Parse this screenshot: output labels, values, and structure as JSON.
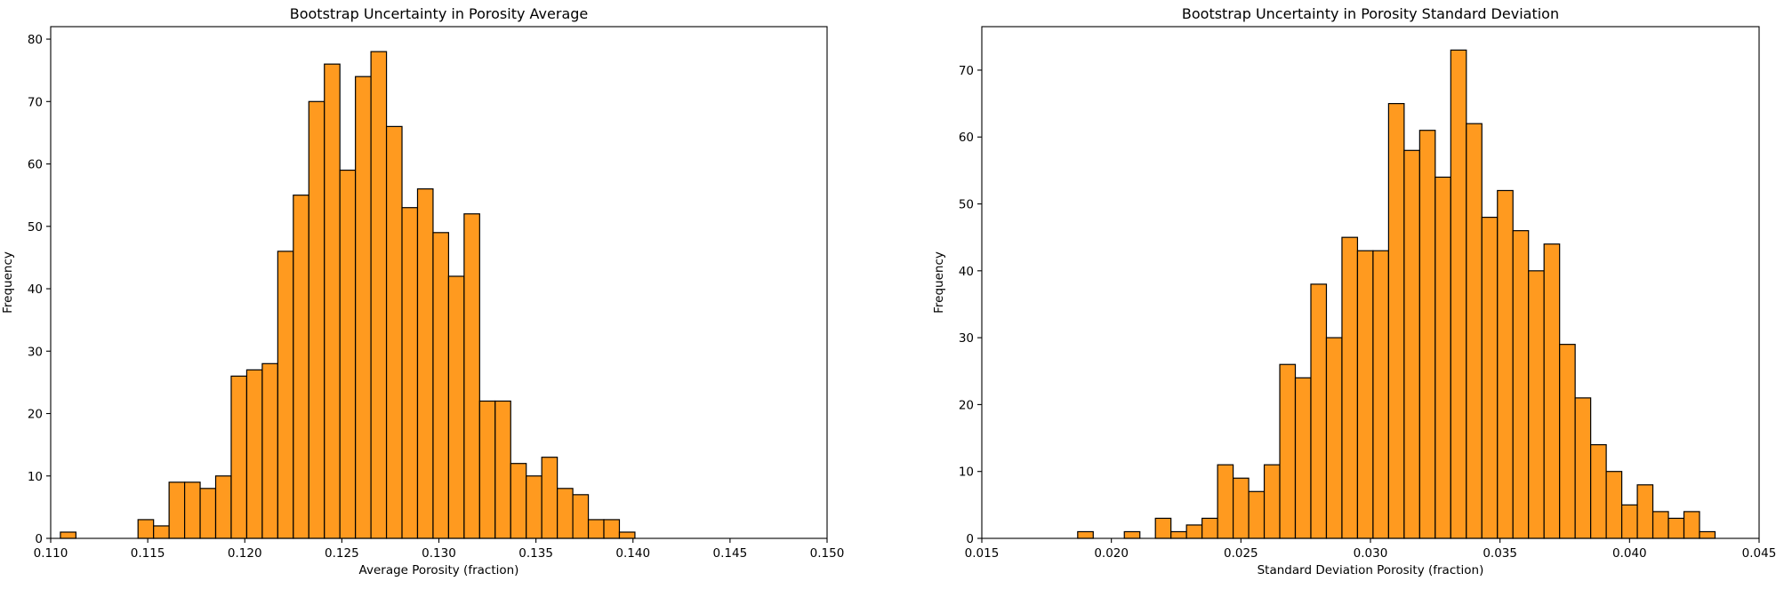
{
  "colors": {
    "bar_fill": "#ff9a1f",
    "bar_edge": "#000000",
    "axis": "#000000",
    "background": "#ffffff"
  },
  "chart_data": [
    {
      "type": "bar",
      "subtype": "histogram",
      "title": "Bootstrap Uncertainty in Porosity Average",
      "xlabel": "Average Porosity (fraction)",
      "ylabel": "Frequency",
      "xlim": [
        0.11,
        0.15
      ],
      "ylim": [
        0,
        82
      ],
      "grid": false,
      "legend": "none",
      "xticks": [
        "0.110",
        "0.115",
        "0.120",
        "0.125",
        "0.130",
        "0.135",
        "0.140",
        "0.145",
        "0.150"
      ],
      "yticks": [
        "0",
        "10",
        "20",
        "30",
        "40",
        "50",
        "60",
        "70",
        "80"
      ],
      "bin_edges": [
        0.1105,
        0.1113,
        0.1121,
        0.1129,
        0.1137,
        0.1145,
        0.1153,
        0.1161,
        0.1169,
        0.1177,
        0.1185,
        0.1193,
        0.1201,
        0.1209,
        0.1217,
        0.1225,
        0.1233,
        0.1241,
        0.1249,
        0.1257,
        0.1265,
        0.1273,
        0.1281,
        0.1289,
        0.1297,
        0.1305,
        0.1313,
        0.1321,
        0.1329,
        0.1337,
        0.1345,
        0.1353,
        0.1361,
        0.1369,
        0.1377,
        0.1385,
        0.1393,
        0.1401
      ],
      "values": [
        1,
        0,
        0,
        0,
        0,
        3,
        2,
        9,
        9,
        8,
        10,
        26,
        27,
        28,
        46,
        55,
        70,
        76,
        59,
        74,
        78,
        66,
        53,
        56,
        49,
        42,
        52,
        22,
        22,
        12,
        10,
        13,
        8,
        7,
        3,
        3,
        1
      ]
    },
    {
      "type": "bar",
      "subtype": "histogram",
      "title": "Bootstrap Uncertainty in Porosity Standard Deviation",
      "xlabel": "Standard Deviation Porosity (fraction)",
      "ylabel": "Frequency",
      "xlim": [
        0.015,
        0.045
      ],
      "ylim": [
        0,
        76.5
      ],
      "grid": false,
      "legend": "none",
      "xticks": [
        "0.015",
        "0.020",
        "0.025",
        "0.030",
        "0.035",
        "0.040",
        "0.045"
      ],
      "yticks": [
        "0",
        "10",
        "20",
        "30",
        "40",
        "50",
        "60",
        "70"
      ],
      "bin_edges": [
        0.0187,
        0.0193,
        0.0199,
        0.0205,
        0.0211,
        0.0217,
        0.0223,
        0.0229,
        0.0235,
        0.0241,
        0.0247,
        0.0253,
        0.0259,
        0.0265,
        0.0271,
        0.0277,
        0.0283,
        0.0289,
        0.0295,
        0.0301,
        0.0307,
        0.0313,
        0.0319,
        0.0325,
        0.0331,
        0.0337,
        0.0343,
        0.0349,
        0.0355,
        0.0361,
        0.0367,
        0.0373,
        0.0379,
        0.0385,
        0.0391,
        0.0397,
        0.0403,
        0.0409,
        0.0415,
        0.0421,
        0.0427,
        0.0433,
        0.0439
      ],
      "values": [
        1,
        0,
        0,
        1,
        0,
        3,
        1,
        2,
        3,
        11,
        9,
        7,
        11,
        26,
        24,
        38,
        30,
        45,
        43,
        43,
        65,
        58,
        61,
        54,
        73,
        62,
        48,
        52,
        46,
        40,
        44,
        29,
        21,
        14,
        10,
        5,
        8,
        4,
        3,
        4,
        1,
        0
      ]
    }
  ]
}
